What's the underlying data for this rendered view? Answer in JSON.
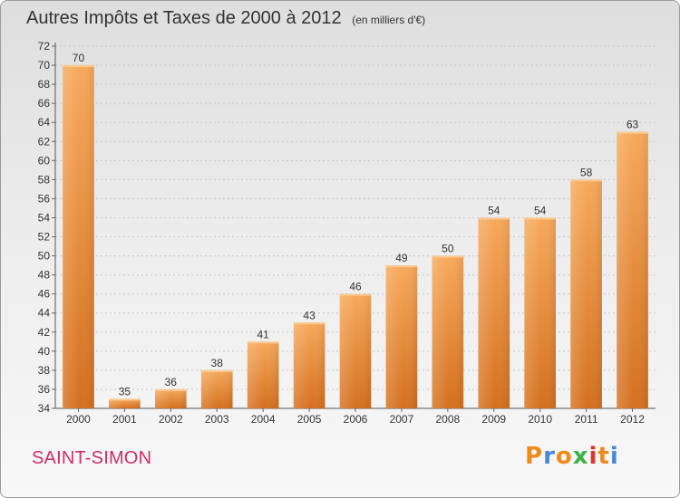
{
  "chart_data": {
    "type": "bar",
    "title": "Autres Impôts et Taxes de 2000 à 2012",
    "subtitle": "(en milliers d'€)",
    "xlabel": "",
    "ylabel": "",
    "categories": [
      "2000",
      "2001",
      "2002",
      "2003",
      "2004",
      "2005",
      "2006",
      "2007",
      "2008",
      "2009",
      "2010",
      "2011",
      "2012"
    ],
    "values": [
      70,
      35,
      36,
      38,
      41,
      43,
      46,
      49,
      50,
      54,
      54,
      58,
      63
    ],
    "ylim": [
      34,
      72
    ],
    "yticks": [
      34,
      36,
      38,
      40,
      42,
      44,
      46,
      48,
      50,
      52,
      54,
      56,
      58,
      60,
      62,
      64,
      66,
      68,
      70,
      72
    ],
    "grid": true,
    "legend": "none",
    "colors": {
      "bar_top": "#f7a95b",
      "bar_bottom": "#d4701f",
      "accent": "#cc2f62"
    }
  },
  "location": "SAINT-SIMON",
  "logo": {
    "text": "Proxiti",
    "letters": [
      "P",
      "r",
      "o",
      "x",
      "i",
      "t",
      "i"
    ],
    "colors": [
      "#f08a1c",
      "#4a8ad4",
      "#f08a1c",
      "#3cb34a",
      "#e0352b",
      "#f08a1c",
      "#4a8ad4"
    ]
  }
}
